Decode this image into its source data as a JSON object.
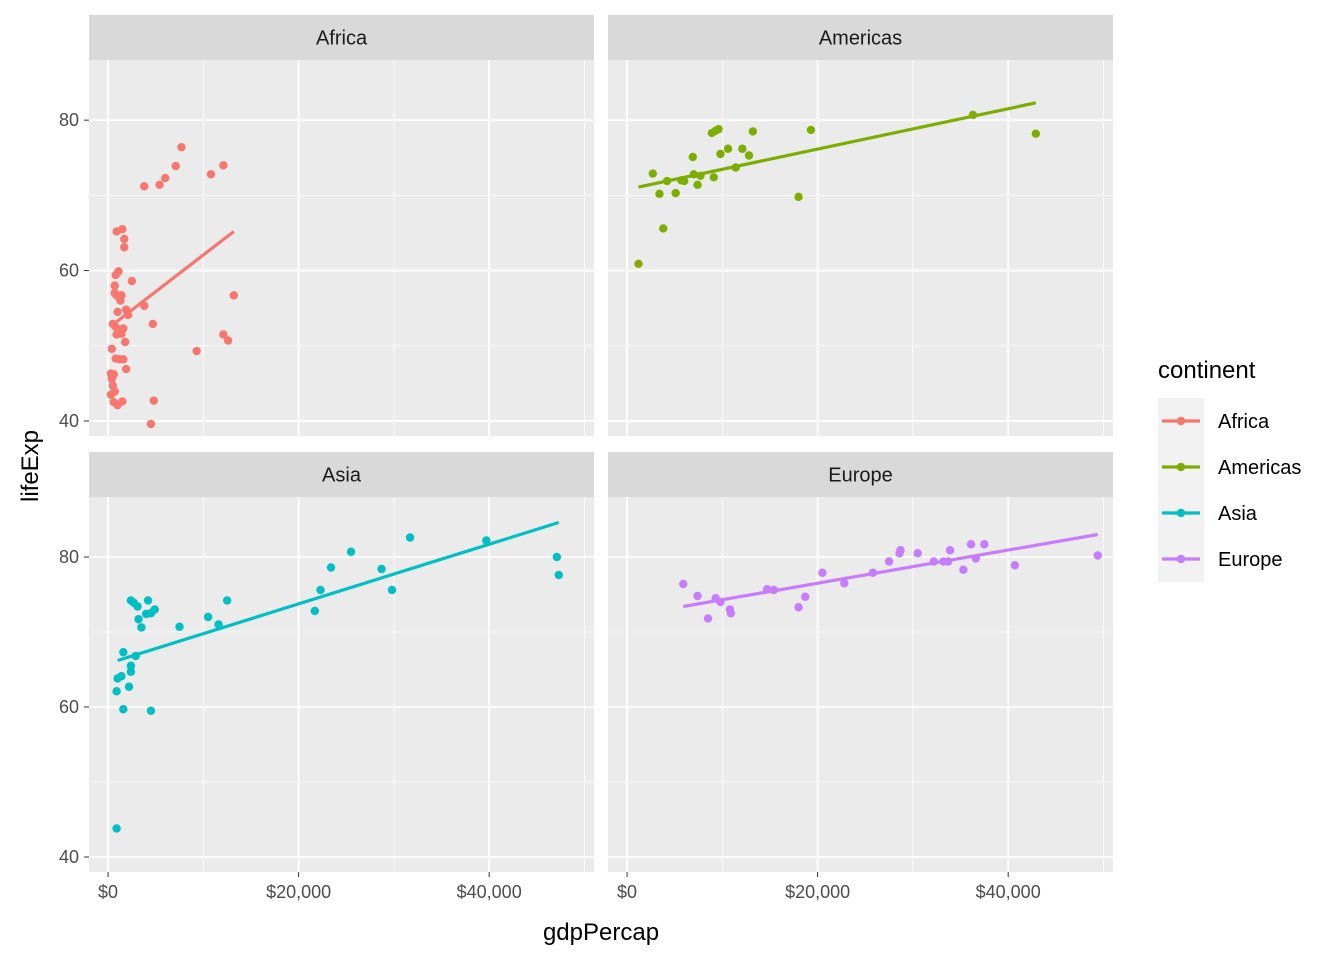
{
  "chart_data": {
    "type": "scatter",
    "xlabel": "gdpPercap",
    "ylabel": "lifeExp",
    "xlim": [
      -2000,
      51000
    ],
    "ylim": [
      38,
      88
    ],
    "x_ticks": [
      0,
      20000,
      40000
    ],
    "x_tick_labels": [
      "$0",
      "$20,000",
      "$40,000"
    ],
    "y_ticks": [
      40,
      60,
      80
    ],
    "y_tick_labels": [
      "40",
      "60",
      "80"
    ],
    "grid": true,
    "facet_layout": "2x2",
    "legend": {
      "title": "continent",
      "position": "right"
    },
    "overlay": "linear trend line per facet",
    "series": [
      {
        "name": "Africa",
        "color": "#F8766D",
        "fit": {
          "x": [
            700,
            13200
          ],
          "y": [
            53.0,
            65.2
          ]
        },
        "points": [
          [
            300,
            43.5
          ],
          [
            300,
            46.3
          ],
          [
            400,
            46.0
          ],
          [
            400,
            49.6
          ],
          [
            400,
            45.6
          ],
          [
            500,
            52.9
          ],
          [
            500,
            44.7
          ],
          [
            600,
            46.2
          ],
          [
            600,
            42.5
          ],
          [
            700,
            57.0
          ],
          [
            700,
            58.0
          ],
          [
            700,
            43.9
          ],
          [
            800,
            48.3
          ],
          [
            800,
            59.4
          ],
          [
            800,
            52.5
          ],
          [
            900,
            65.2
          ],
          [
            900,
            51.5
          ],
          [
            900,
            56.7
          ],
          [
            1000,
            54.5
          ],
          [
            1000,
            42.1
          ],
          [
            1100,
            59.9
          ],
          [
            1100,
            51.9
          ],
          [
            1200,
            48.2
          ],
          [
            1300,
            56.0
          ],
          [
            1400,
            51.6
          ],
          [
            1400,
            56.7
          ],
          [
            1500,
            65.5
          ],
          [
            1500,
            42.6
          ],
          [
            1600,
            48.2
          ],
          [
            1600,
            52.3
          ],
          [
            1700,
            63.1
          ],
          [
            1700,
            64.2
          ],
          [
            1800,
            50.5
          ],
          [
            1900,
            54.8
          ],
          [
            1900,
            46.9
          ],
          [
            2100,
            54.1
          ],
          [
            2500,
            58.6
          ],
          [
            3800,
            55.3
          ],
          [
            3800,
            71.2
          ],
          [
            4500,
            39.6
          ],
          [
            4700,
            52.9
          ],
          [
            4800,
            42.7
          ],
          [
            5400,
            71.4
          ],
          [
            6000,
            72.3
          ],
          [
            7100,
            73.9
          ],
          [
            7700,
            76.4
          ],
          [
            9300,
            49.3
          ],
          [
            10800,
            72.8
          ],
          [
            12100,
            74.0
          ],
          [
            12100,
            51.5
          ],
          [
            12600,
            50.7
          ],
          [
            13200,
            56.7
          ]
        ]
      },
      {
        "name": "Americas",
        "color": "#7CAE00",
        "fit": {
          "x": [
            1200,
            42900
          ],
          "y": [
            71.1,
            82.3
          ]
        },
        "points": [
          [
            1200,
            60.9
          ],
          [
            2700,
            72.9
          ],
          [
            3400,
            70.2
          ],
          [
            3800,
            65.6
          ],
          [
            4200,
            71.9
          ],
          [
            5100,
            70.3
          ],
          [
            5700,
            72.0
          ],
          [
            6000,
            71.9
          ],
          [
            6900,
            75.1
          ],
          [
            7000,
            72.8
          ],
          [
            7400,
            71.4
          ],
          [
            7700,
            72.6
          ],
          [
            8900,
            78.3
          ],
          [
            9100,
            72.4
          ],
          [
            9300,
            78.6
          ],
          [
            9600,
            78.8
          ],
          [
            9800,
            75.5
          ],
          [
            10600,
            76.2
          ],
          [
            11400,
            73.7
          ],
          [
            12100,
            76.2
          ],
          [
            12800,
            75.3
          ],
          [
            13200,
            78.5
          ],
          [
            18000,
            69.8
          ],
          [
            19300,
            78.7
          ],
          [
            36300,
            80.7
          ],
          [
            42900,
            78.2
          ]
        ]
      },
      {
        "name": "Asia",
        "color": "#00BFC4",
        "fit": {
          "x": [
            1000,
            47300
          ],
          "y": [
            66.2,
            84.6
          ]
        },
        "points": [
          [
            900,
            43.8
          ],
          [
            900,
            62.1
          ],
          [
            1000,
            63.8
          ],
          [
            1400,
            64.1
          ],
          [
            1600,
            67.3
          ],
          [
            1600,
            59.7
          ],
          [
            2200,
            62.7
          ],
          [
            2400,
            64.7
          ],
          [
            2400,
            65.5
          ],
          [
            2400,
            74.2
          ],
          [
            2700,
            73.9
          ],
          [
            2900,
            66.8
          ],
          [
            3100,
            73.4
          ],
          [
            3200,
            71.7
          ],
          [
            3500,
            70.6
          ],
          [
            4000,
            72.4
          ],
          [
            4200,
            74.2
          ],
          [
            4500,
            59.5
          ],
          [
            4500,
            72.5
          ],
          [
            4900,
            73.0
          ],
          [
            7500,
            70.7
          ],
          [
            10500,
            72.0
          ],
          [
            11600,
            71.0
          ],
          [
            12500,
            74.2
          ],
          [
            21700,
            72.8
          ],
          [
            22300,
            75.6
          ],
          [
            23400,
            78.6
          ],
          [
            25500,
            80.7
          ],
          [
            28700,
            78.4
          ],
          [
            29800,
            75.6
          ],
          [
            31700,
            82.6
          ],
          [
            39700,
            82.2
          ],
          [
            47100,
            80.0
          ],
          [
            47300,
            77.6
          ]
        ]
      },
      {
        "name": "Europe",
        "color": "#C77CFF",
        "fit": {
          "x": [
            5900,
            49400
          ],
          "y": [
            73.4,
            83.0
          ]
        },
        "points": [
          [
            5900,
            76.4
          ],
          [
            7400,
            74.8
          ],
          [
            8500,
            71.8
          ],
          [
            9300,
            74.5
          ],
          [
            9800,
            74.0
          ],
          [
            10800,
            73.0
          ],
          [
            10900,
            72.5
          ],
          [
            14700,
            75.7
          ],
          [
            15400,
            75.6
          ],
          [
            18000,
            73.3
          ],
          [
            18700,
            74.7
          ],
          [
            20500,
            77.9
          ],
          [
            22800,
            76.5
          ],
          [
            25800,
            77.9
          ],
          [
            27500,
            79.4
          ],
          [
            28600,
            80.5
          ],
          [
            28700,
            80.9
          ],
          [
            30500,
            80.5
          ],
          [
            32200,
            79.4
          ],
          [
            33200,
            79.4
          ],
          [
            33700,
            79.4
          ],
          [
            33900,
            80.9
          ],
          [
            35300,
            78.3
          ],
          [
            36100,
            81.7
          ],
          [
            36600,
            79.8
          ],
          [
            37500,
            81.7
          ],
          [
            40700,
            78.9
          ],
          [
            49400,
            80.2
          ]
        ]
      }
    ]
  }
}
